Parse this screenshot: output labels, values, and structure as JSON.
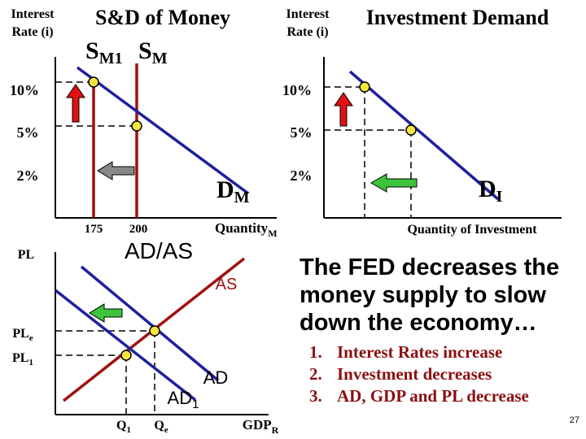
{
  "money_graph": {
    "y_label": [
      "Interest",
      "Rate (i)"
    ],
    "title": "S&D of Money",
    "supply_1": {
      "main": "S",
      "sub": "M1"
    },
    "supply": {
      "main": "S",
      "sub": "M"
    },
    "rates": [
      "10%",
      "5%",
      "2%"
    ],
    "quantities": [
      "175",
      "200"
    ],
    "demand": {
      "main": "D",
      "sub": "M"
    },
    "x_label": {
      "main": "Quantity",
      "sub": "M"
    }
  },
  "investment_graph": {
    "y_label": [
      "Interest",
      "Rate (i)"
    ],
    "title": "Investment Demand",
    "rates": [
      "10%",
      "5%",
      "2%"
    ],
    "demand": {
      "main": "D",
      "sub": "I"
    },
    "x_label": "Quantity of Investment"
  },
  "adas_graph": {
    "y_label": "PL",
    "title": "AD/AS",
    "supply": "AS",
    "pl_e": {
      "main": "PL",
      "sub": "e"
    },
    "pl_1": {
      "main": "PL",
      "sub": "1"
    },
    "demand": "AD",
    "demand_1": {
      "main": "AD",
      "sub": "1"
    },
    "q_1": {
      "main": "Q",
      "sub": "1"
    },
    "q_e": {
      "main": "Q",
      "sub": "e"
    },
    "x_label": {
      "main": "GDP",
      "sub": "R"
    }
  },
  "summary": {
    "heading": [
      "The FED decreases the",
      "money supply to slow",
      "down the economy…"
    ],
    "list": [
      {
        "number": "1.",
        "text": "Interest Rates increase"
      },
      {
        "number": "2.",
        "text": "Investment decreases"
      },
      {
        "number": "3.",
        "text": "AD, GDP and PL decrease"
      }
    ]
  },
  "page_number": "27"
}
